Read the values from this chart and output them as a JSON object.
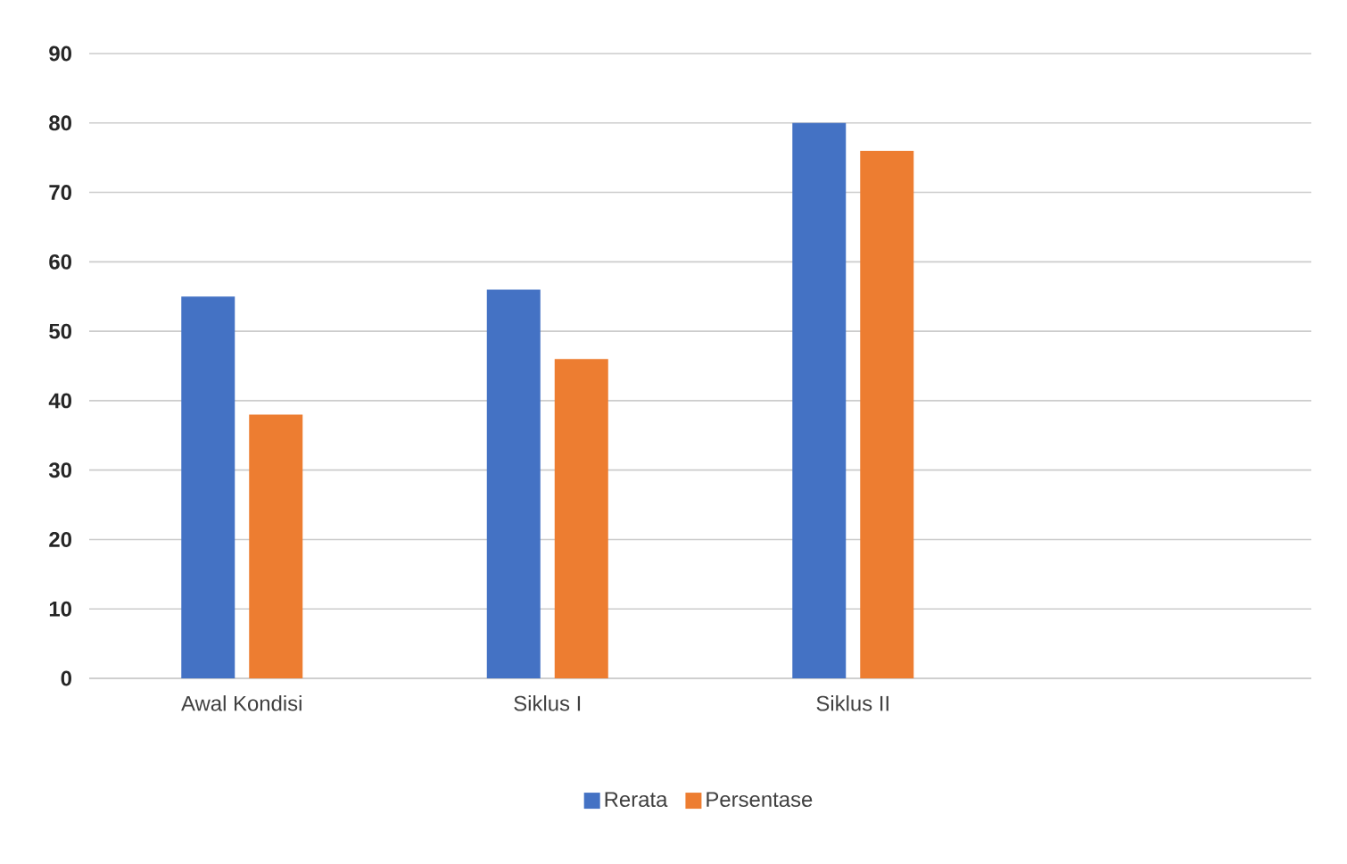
{
  "chart_data": {
    "type": "bar",
    "categories": [
      "Awal Kondisi",
      "Siklus I",
      "Siklus II",
      null
    ],
    "series": [
      {
        "name": "Rerata",
        "color": "#4472c4",
        "values": [
          55,
          56,
          80,
          null
        ]
      },
      {
        "name": "Persentase",
        "color": "#ed7d31",
        "values": [
          38,
          46,
          76,
          null
        ]
      }
    ],
    "ylim": [
      0,
      90
    ],
    "yticks": [
      0,
      10,
      20,
      30,
      40,
      50,
      60,
      70,
      80,
      90
    ],
    "grid": "y",
    "legend": "bottom"
  }
}
